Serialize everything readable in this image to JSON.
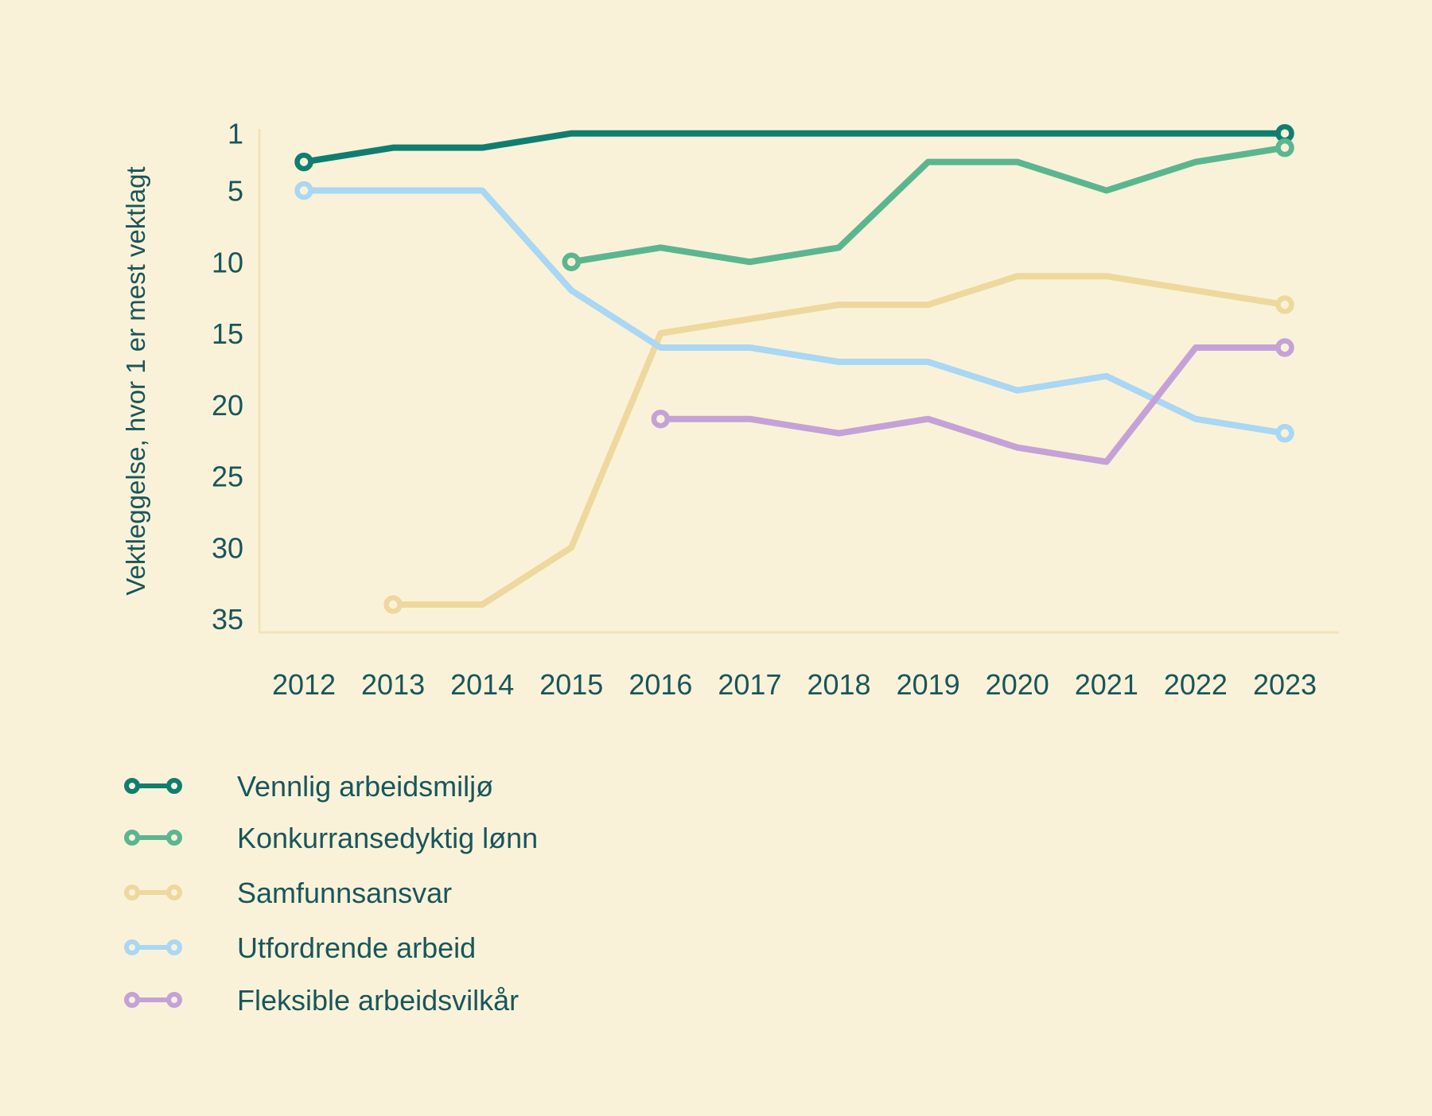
{
  "chart_data": {
    "type": "line",
    "title": "",
    "categories": [
      "2012",
      "2013",
      "2014",
      "2015",
      "2016",
      "2017",
      "2018",
      "2019",
      "2020",
      "2021",
      "2022",
      "2023"
    ],
    "y_axis": {
      "label": "Vektleggelse, hvor 1 er mest vektlagt",
      "ticks": [
        "1",
        "5",
        "10",
        "15",
        "20",
        "25",
        "30",
        "35"
      ],
      "tick_values": [
        1,
        5,
        10,
        15,
        20,
        25,
        30,
        35
      ],
      "inverted": true,
      "range": [
        1,
        35
      ]
    },
    "series": [
      {
        "name": "Vennlig arbeidsmiljø",
        "color": "#0f7e70",
        "values": [
          3,
          2,
          2,
          1,
          1,
          1,
          1,
          1,
          1,
          1,
          1,
          1
        ]
      },
      {
        "name": "Konkurransedyktig lønn",
        "color": "#5bb690",
        "values": [
          null,
          null,
          null,
          10,
          9,
          10,
          9,
          3,
          3,
          5,
          3,
          2
        ]
      },
      {
        "name": "Samfunnsansvar",
        "color": "#eed89e",
        "values": [
          null,
          34,
          34,
          30,
          15,
          14,
          13,
          13,
          11,
          11,
          12,
          13
        ]
      },
      {
        "name": "Utfordrende arbeid",
        "color": "#a9d7f4",
        "values": [
          5,
          5,
          5,
          12,
          16,
          16,
          17,
          17,
          19,
          18,
          21,
          22
        ]
      },
      {
        "name": "Fleksible arbeidsvilkår",
        "color": "#c4a2d8",
        "values": [
          null,
          null,
          null,
          null,
          21,
          21,
          22,
          21,
          23,
          24,
          16,
          16
        ]
      }
    ],
    "legend_position": "bottom-left",
    "grid": false,
    "marker_style": "ring-at-endpoints",
    "colors": {
      "background": "#faf2d8",
      "axis_line": "#f1e3b9",
      "text": "#18565b"
    }
  }
}
